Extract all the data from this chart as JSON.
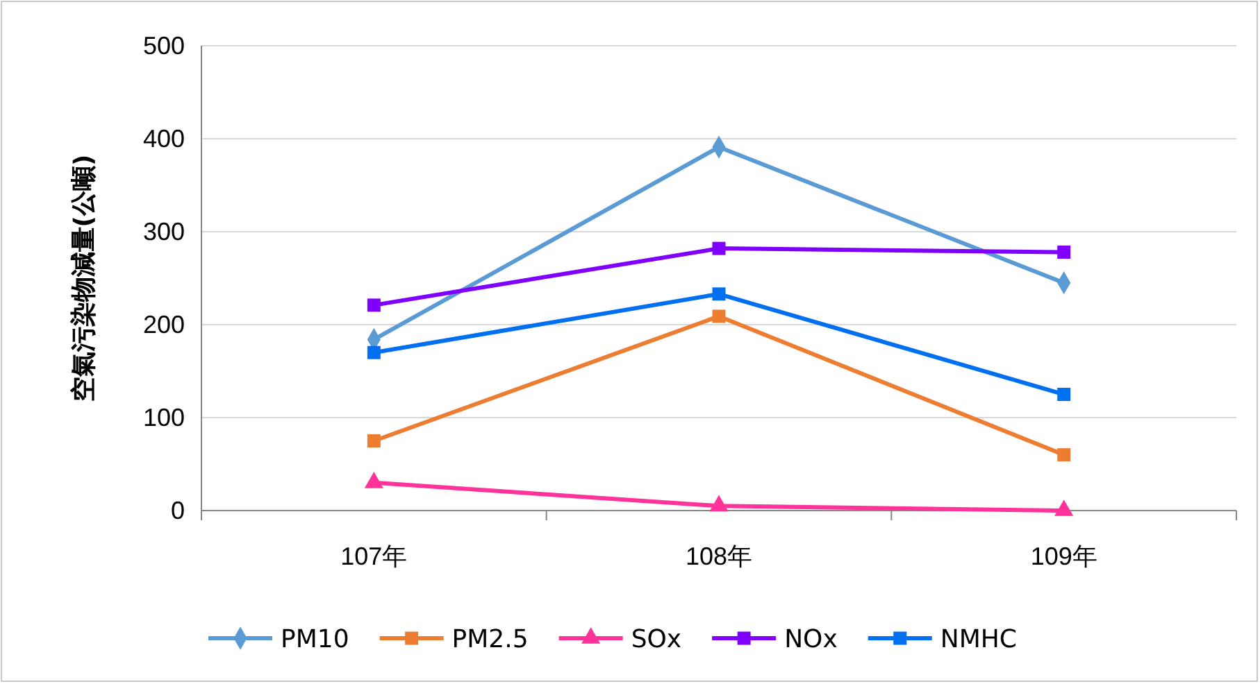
{
  "chart_data": {
    "type": "line",
    "ylabel": "空氣污染物減量(公噸)",
    "categories": [
      "107年",
      "108年",
      "109年"
    ],
    "ylim": [
      0,
      500
    ],
    "yticks": [
      0,
      100,
      200,
      300,
      400,
      500
    ],
    "grid": "y",
    "legend": "bottom",
    "line_style": "solid",
    "series": [
      {
        "name": "PM10",
        "color": "#5b9bd5",
        "marker": "diamond",
        "values": [
          184,
          391,
          245
        ]
      },
      {
        "name": "PM2.5",
        "color": "#ed7d31",
        "marker": "square",
        "values": [
          75,
          209,
          60
        ]
      },
      {
        "name": "SOx",
        "color": "#ff3399",
        "marker": "triangle",
        "values": [
          30,
          5,
          0
        ]
      },
      {
        "name": "NOx",
        "color": "#7f00ff",
        "marker": "square",
        "values": [
          221,
          282,
          278
        ]
      },
      {
        "name": "NMHC",
        "color": "#0070f0",
        "marker": "square",
        "values": [
          170,
          233,
          125
        ]
      }
    ]
  }
}
